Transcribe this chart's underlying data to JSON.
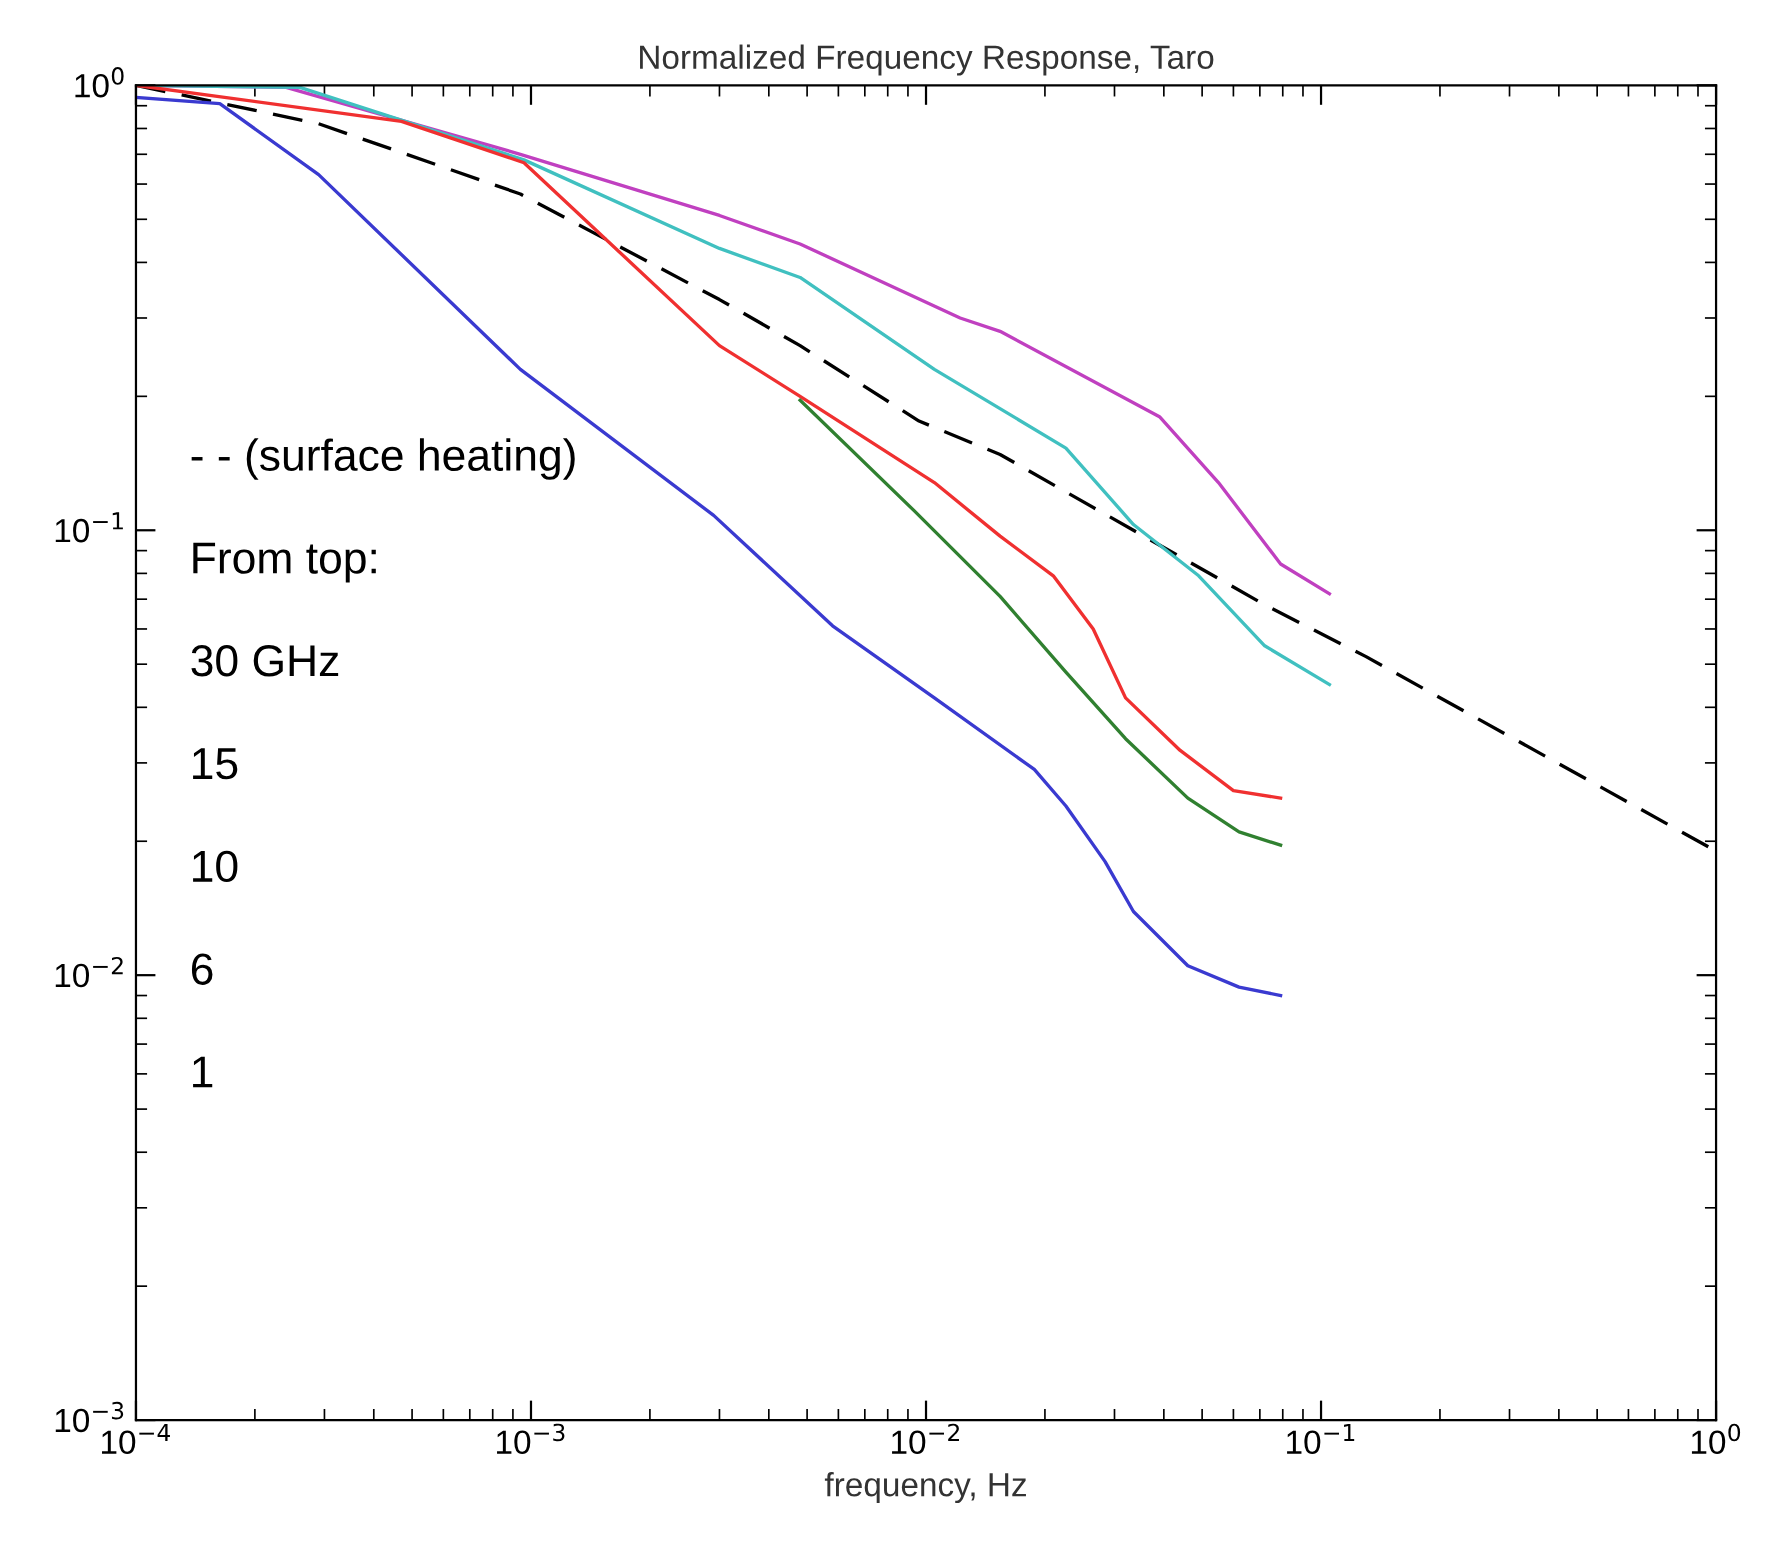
{
  "chart_data": {
    "type": "line",
    "title": "Normalized Frequency Response, Taro",
    "xlabel": "frequency, Hz",
    "log": "xy",
    "xlim": [
      0.0001,
      1
    ],
    "ylim": [
      0.001,
      1
    ],
    "xticks": [
      {
        "value": 0.0001,
        "label": "10$^{−4}$"
      },
      {
        "value": 0.001,
        "label": "10$^{−3}$"
      },
      {
        "value": 0.01,
        "label": "10$^{−2}$"
      },
      {
        "value": 0.1,
        "label": "10$^{−1}$"
      },
      {
        "value": 1,
        "label": "10$^{0}$"
      }
    ],
    "yticks": [
      {
        "value": 0.001,
        "label": "10$^{−3}$"
      },
      {
        "value": 0.01,
        "label": "10$^{−2}$"
      },
      {
        "value": 0.1,
        "label": "10$^{−1}$"
      },
      {
        "value": 1,
        "label": "10$^{0}$"
      }
    ],
    "grid": false,
    "annotations": [
      "- - (surface heating)",
      "From top:",
      "30 GHz",
      "15",
      "10",
      "6",
      "1"
    ],
    "series": [
      {
        "color": "#000000",
        "line_style": "dashed",
        "x": [
          0.0001,
          0.00029,
          0.00094,
          0.003,
          0.0048,
          0.0096,
          0.0154,
          0.0335,
          0.072,
          0.13,
          1.0
        ],
        "values": [
          1.0,
          0.82,
          0.57,
          0.33,
          0.26,
          0.176,
          0.148,
          0.1,
          0.068,
          0.052,
          0.019
        ]
      },
      {
        "color": "#c040c0",
        "line_style": "solid",
        "x": [
          0.0001,
          0.00024,
          0.00094,
          0.003,
          0.0048,
          0.0122,
          0.0154,
          0.039,
          0.055,
          0.079,
          0.105
        ],
        "values": [
          1.0,
          0.99,
          0.7,
          0.51,
          0.44,
          0.3,
          0.28,
          0.18,
          0.128,
          0.084,
          0.072
        ]
      },
      {
        "color": "#40c0c0",
        "line_style": "solid",
        "x": [
          0.0001,
          0.00026,
          0.00096,
          0.003,
          0.0048,
          0.0105,
          0.0226,
          0.0335,
          0.049,
          0.072,
          0.105
        ],
        "values": [
          1.0,
          0.99,
          0.68,
          0.43,
          0.37,
          0.23,
          0.153,
          0.103,
          0.079,
          0.055,
          0.045
        ]
      },
      {
        "color": "#f03030",
        "line_style": "solid",
        "x": [
          0.0001,
          0.00047,
          0.00096,
          0.003,
          0.0048,
          0.0105,
          0.0154,
          0.021,
          0.0265,
          0.032,
          0.044,
          0.06,
          0.079
        ],
        "values": [
          1.0,
          0.83,
          0.67,
          0.26,
          0.2,
          0.128,
          0.097,
          0.079,
          0.06,
          0.042,
          0.032,
          0.026,
          0.025
        ]
      },
      {
        "color": "#308030",
        "line_style": "solid",
        "x": [
          0.0048,
          0.0093,
          0.0154,
          0.0226,
          0.032,
          0.046,
          0.062,
          0.079
        ],
        "values": [
          0.196,
          0.111,
          0.071,
          0.048,
          0.034,
          0.025,
          0.021,
          0.0196
        ]
      },
      {
        "color": "#3a3ad0",
        "line_style": "solid",
        "x": [
          0.0001,
          0.000163,
          0.00029,
          0.00094,
          0.0029,
          0.0058,
          0.0105,
          0.0188,
          0.0226,
          0.0284,
          0.0335,
          0.046,
          0.062,
          0.079
        ],
        "values": [
          0.94,
          0.91,
          0.63,
          0.23,
          0.108,
          0.061,
          0.042,
          0.029,
          0.024,
          0.018,
          0.0139,
          0.0105,
          0.0094,
          0.009
        ]
      }
    ]
  }
}
